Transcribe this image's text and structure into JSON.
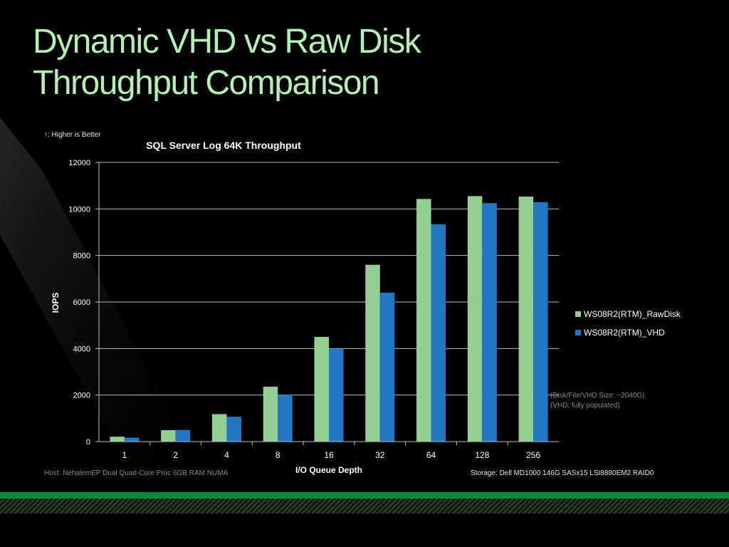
{
  "slide": {
    "title_line1": "Dynamic VHD vs Raw Disk",
    "title_line2": "Throughput Comparison"
  },
  "notes": {
    "higher_is_better": "↑: Higher is Better",
    "disk_size": "(Disk/File/VHD Size: ~2040G)",
    "vhd_populated": "(VHD: fully populated)",
    "host": "Host: NehalemEP Dual Quad-Core Proc 6GB RAM NUMA",
    "storage": "Storage: Dell MD1000 146G SASx15 LSI8880EM2 RAID0"
  },
  "colors": {
    "title": "#b3f0b3",
    "rawdisk": "#93cf93",
    "vhd": "#2277c4"
  },
  "chart_data": {
    "type": "bar",
    "title": "SQL Server Log 64K Throughput",
    "xlabel": "I/O Queue Depth",
    "ylabel": "IOPS",
    "ylim": [
      0,
      12000
    ],
    "yticks": [
      0,
      2000,
      4000,
      6000,
      8000,
      10000,
      12000
    ],
    "grid": true,
    "legend_position": "right",
    "categories": [
      "1",
      "2",
      "4",
      "8",
      "16",
      "32",
      "64",
      "128",
      "256"
    ],
    "series": [
      {
        "name": "WS08R2(RTM)_RawDisk",
        "color": "#93cf93",
        "values": [
          210,
          490,
          1180,
          2360,
          4500,
          7600,
          10430,
          10550,
          10530
        ]
      },
      {
        "name": "WS08R2(RTM)_VHD",
        "color": "#2277c4",
        "values": [
          170,
          500,
          1070,
          2010,
          3990,
          6400,
          9340,
          10250,
          10290
        ]
      }
    ]
  }
}
